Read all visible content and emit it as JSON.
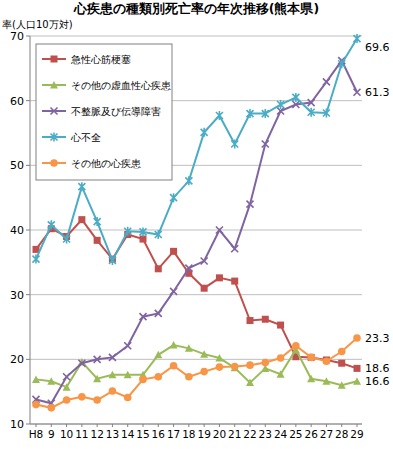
{
  "chart_data": {
    "type": "line",
    "title": "心疾患の種類別死亡率の年次推移(熊本県)",
    "y_label": "率(人口10万対)",
    "categories": [
      "H8",
      "9",
      "10",
      "11",
      "12",
      "13",
      "14",
      "15",
      "16",
      "17",
      "18",
      "19",
      "20",
      "21",
      "22",
      "23",
      "24",
      "25",
      "26",
      "27",
      "28",
      "29"
    ],
    "ylim": [
      10,
      70
    ],
    "yticks": [
      10,
      20,
      30,
      40,
      50,
      60,
      70
    ],
    "grid": true,
    "legend": "upper left",
    "series": [
      {
        "name": "急性心筋梗塞",
        "color": "#c0504d",
        "marker": "square",
        "values": [
          37,
          40.2,
          39,
          41.6,
          38.4,
          35.5,
          39.3,
          38.6,
          34,
          36.7,
          33.3,
          31,
          32.6,
          32.1,
          26,
          26.2,
          25.3,
          20.4,
          20.3,
          19.9,
          19.4,
          18.6
        ]
      },
      {
        "name": "その他の虚血性心疾患",
        "color": "#9bbb59",
        "marker": "triangle",
        "values": [
          16.9,
          16.6,
          15.7,
          19.6,
          17,
          17.6,
          17.6,
          17.6,
          20.7,
          22.2,
          21.7,
          20.8,
          20.2,
          18.7,
          16.4,
          18.6,
          17.7,
          21.5,
          17,
          16.6,
          16,
          16.6
        ]
      },
      {
        "name": "不整脈及び伝導障害",
        "color": "#8064a2",
        "marker": "x",
        "values": [
          13.8,
          13.2,
          17.3,
          19.4,
          20,
          20.3,
          22.1,
          26.6,
          27.1,
          30.5,
          34.1,
          35.2,
          40,
          37.1,
          44,
          53.3,
          58.4,
          59.4,
          59.7,
          62.9,
          66.2,
          61.3
        ]
      },
      {
        "name": "心不全",
        "color": "#4bacc6",
        "marker": "star",
        "values": [
          35.5,
          40.8,
          38.6,
          46.7,
          41.3,
          35.3,
          39.8,
          39.7,
          39.3,
          45,
          47.6,
          55.1,
          57.7,
          53.3,
          58,
          58,
          59.4,
          60.5,
          58.2,
          58.1,
          65.7,
          69.6
        ]
      },
      {
        "name": "その他の心疾患",
        "color": "#f79646",
        "marker": "circle",
        "values": [
          13,
          12.5,
          13.7,
          14.2,
          13.7,
          15.1,
          14.1,
          16.9,
          17.3,
          19,
          17.3,
          18.1,
          18.8,
          18.9,
          19.1,
          19.5,
          20.2,
          22.1,
          20.3,
          19.7,
          21.2,
          23.3
        ]
      }
    ],
    "annotations": [
      {
        "text": "69.6",
        "series": 3
      },
      {
        "text": "61.3",
        "series": 2
      },
      {
        "text": "23.3",
        "series": 4
      },
      {
        "text": "18.6",
        "series": 0
      },
      {
        "text": "16.6",
        "series": 1
      }
    ]
  }
}
